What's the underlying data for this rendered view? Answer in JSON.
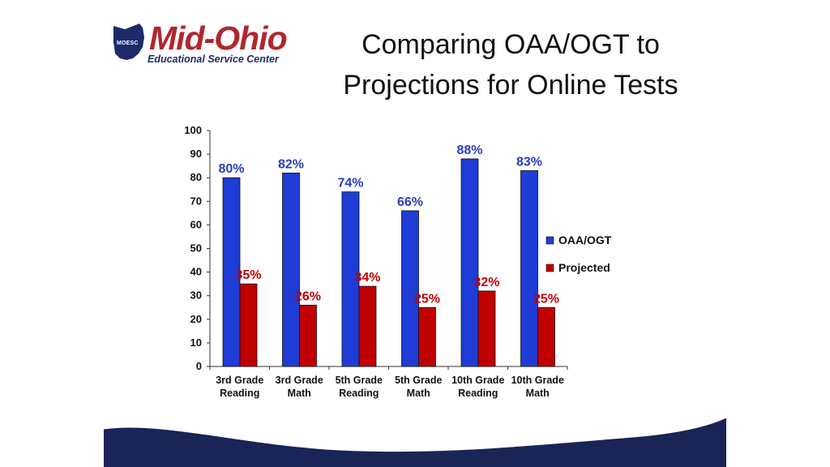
{
  "logo": {
    "abbr": "MOESC",
    "name": "Mid-Ohio",
    "subtitle": "Educational Service Center"
  },
  "slide": {
    "title_line1": "Comparing OAA/OGT to",
    "title_line2": "Projections for Online Tests"
  },
  "colors": {
    "series_blue": "#1f3cd6",
    "series_red": "#c00000",
    "label_blue": "#2a3dbb",
    "label_red": "#c00000",
    "wave_navy": "#1a2456",
    "logo_red": "#b2262e"
  },
  "chart_data": {
    "type": "bar",
    "categories": [
      [
        "3rd Grade",
        "Reading"
      ],
      [
        "3rd Grade",
        "Math"
      ],
      [
        "5th Grade",
        "Reading"
      ],
      [
        "5th Grade",
        "Math"
      ],
      [
        "10th Grade",
        "Reading"
      ],
      [
        "10th Grade",
        "Math"
      ]
    ],
    "series": [
      {
        "name": "OAA/OGT",
        "values": [
          80,
          82,
          74,
          66,
          88,
          83
        ],
        "labels": [
          "80%",
          "82%",
          "74%",
          "66%",
          "88%",
          "83%"
        ]
      },
      {
        "name": "Projected",
        "values": [
          35,
          26,
          34,
          25,
          32,
          25
        ],
        "labels": [
          "35%",
          "26%",
          "34%",
          "25%",
          "32%",
          "25%"
        ]
      }
    ],
    "ylim": [
      0,
      100
    ],
    "yticks": [
      "0",
      "10",
      "20",
      "30",
      "40",
      "50",
      "60",
      "70",
      "80",
      "90",
      "100"
    ],
    "legend_position": "right",
    "grid": false
  }
}
